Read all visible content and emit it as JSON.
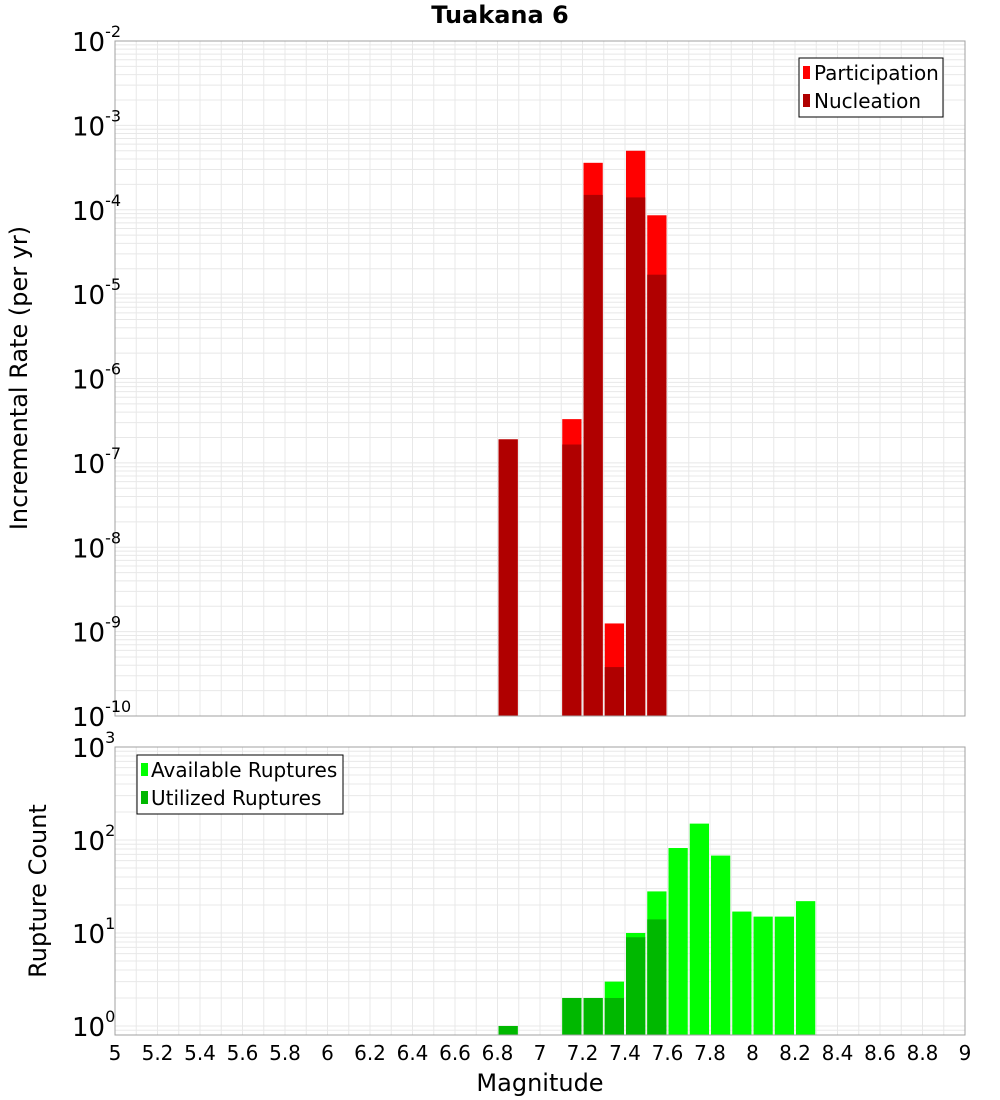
{
  "title": "Tuakana 6",
  "xlabel": "Magnitude",
  "x_tick_labels": [
    "5",
    "5.2",
    "5.4",
    "5.6",
    "5.8",
    "6",
    "6.2",
    "6.4",
    "6.6",
    "6.8",
    "7",
    "7.2",
    "7.4",
    "7.6",
    "7.8",
    "8",
    "8.2",
    "8.4",
    "8.6",
    "8.8",
    "9"
  ],
  "colors": {
    "participation": "#ff0000",
    "nucleation": "#b00000",
    "available": "#00ff00",
    "utilized": "#00b800",
    "grid": "#e8e8e8",
    "frame": "#a0a0a0"
  },
  "chart_data": [
    {
      "type": "bar",
      "ylabel": "Incremental Rate (per yr)",
      "y_scale": "log",
      "xlim": [
        5,
        9
      ],
      "ylim": [
        1e-10,
        0.01
      ],
      "y_tick_labels": [
        {
          "base": "10",
          "exp": "-10"
        },
        {
          "base": "10",
          "exp": "-9"
        },
        {
          "base": "10",
          "exp": "-8"
        },
        {
          "base": "10",
          "exp": "-7"
        },
        {
          "base": "10",
          "exp": "-6"
        },
        {
          "base": "10",
          "exp": "-5"
        },
        {
          "base": "10",
          "exp": "-4"
        },
        {
          "base": "10",
          "exp": "-3"
        },
        {
          "base": "10",
          "exp": "-2"
        }
      ],
      "grid": true,
      "legend_position": "top-right",
      "bin_width": 0.1,
      "series": [
        {
          "name": "Participation",
          "x": [
            6.85,
            7.15,
            7.25,
            7.35,
            7.45,
            7.55
          ],
          "values": [
            1.9e-07,
            3.3e-07,
            0.00036,
            1.25e-09,
            0.0005,
            8.6e-05
          ]
        },
        {
          "name": "Nucleation",
          "x": [
            6.85,
            7.15,
            7.25,
            7.35,
            7.45,
            7.55
          ],
          "values": [
            1.9e-07,
            1.65e-07,
            0.00015,
            3.8e-10,
            0.00014,
            1.7e-05
          ]
        }
      ]
    },
    {
      "type": "bar",
      "ylabel": "Rupture Count",
      "xlabel": "Magnitude",
      "y_scale": "log",
      "xlim": [
        5,
        9
      ],
      "ylim": [
        0.8,
        1000
      ],
      "y_tick_labels": [
        {
          "base": "10",
          "exp": "0"
        },
        {
          "base": "10",
          "exp": "1"
        },
        {
          "base": "10",
          "exp": "2"
        },
        {
          "base": "10",
          "exp": "3"
        }
      ],
      "grid": true,
      "legend_position": "top-left",
      "bin_width": 0.1,
      "series": [
        {
          "name": "Available Ruptures",
          "x": [
            6.85,
            7.15,
            7.25,
            7.35,
            7.45,
            7.55,
            7.65,
            7.75,
            7.85,
            7.95,
            8.05,
            8.15,
            8.25
          ],
          "values": [
            1,
            2,
            2,
            3,
            10,
            28,
            82,
            150,
            68,
            17,
            15,
            15,
            22
          ]
        },
        {
          "name": "Utilized Ruptures",
          "x": [
            6.85,
            7.15,
            7.25,
            7.35,
            7.45,
            7.55
          ],
          "values": [
            1,
            2,
            2,
            2,
            9,
            14
          ]
        }
      ]
    }
  ]
}
